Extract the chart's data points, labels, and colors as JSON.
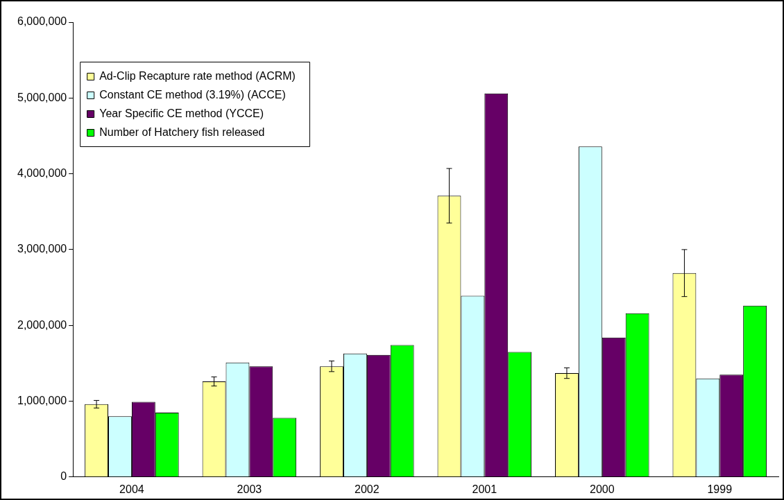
{
  "chart_data": {
    "type": "bar",
    "categories": [
      "2004",
      "2003",
      "2002",
      "2001",
      "2000",
      "1999"
    ],
    "series": [
      {
        "name": "Ad-Clip Recapture rate method (ACRM)",
        "color": "#ffff99",
        "values": [
          960000,
          1260000,
          1460000,
          3710000,
          1370000,
          2690000
        ],
        "errors": [
          50000,
          60000,
          70000,
          360000,
          70000,
          310000
        ]
      },
      {
        "name": "Constant CE method (3.19%) (ACCE)",
        "color": "#ccffff",
        "values": [
          800000,
          1510000,
          1630000,
          2390000,
          4360000,
          1300000
        ]
      },
      {
        "name": "Year Specific CE method (YCCE)",
        "color": "#660066",
        "values": [
          990000,
          1460000,
          1610000,
          5060000,
          1840000,
          1350000
        ]
      },
      {
        "name": "Number of Hatchery fish released",
        "color": "#00ff00",
        "values": [
          850000,
          780000,
          1740000,
          1650000,
          2160000,
          2260000
        ]
      }
    ],
    "ylim": [
      0,
      6000000
    ],
    "yticks": [
      {
        "value": 0,
        "label": "0"
      },
      {
        "value": 1000000,
        "label": "1,000,000"
      },
      {
        "value": 2000000,
        "label": "2,000,000"
      },
      {
        "value": 3000000,
        "label": "3,000,000"
      },
      {
        "value": 4000000,
        "label": "4,000,000"
      },
      {
        "value": 5000000,
        "label": "5,000,000"
      },
      {
        "value": 6000000,
        "label": "6,000,000"
      }
    ],
    "grid": false,
    "legend": "top left"
  }
}
